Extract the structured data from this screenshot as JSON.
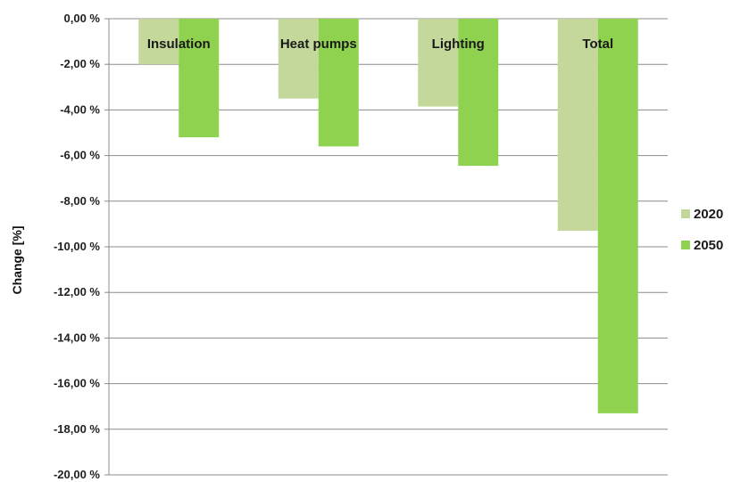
{
  "chart_data": {
    "type": "bar",
    "title": "",
    "xlabel": "",
    "ylabel": "Change [%]",
    "ylim": [
      -20,
      0
    ],
    "y_tick_values": [
      0,
      -2,
      -4,
      -6,
      -8,
      -10,
      -12,
      -14,
      -16,
      -18,
      -20
    ],
    "y_tick_labels": [
      "0,00 %",
      "-2,00 %",
      "-4,00 %",
      "-6,00 %",
      "-8,00 %",
      "-10,00 %",
      "-12,00 %",
      "-14,00 %",
      "-16,00 %",
      "-18,00 %",
      "-20,00 %"
    ],
    "categories": [
      "Insulation",
      "Heat pumps",
      "Lighting",
      "Total"
    ],
    "series": [
      {
        "name": "2020",
        "values": [
          -2.0,
          -3.5,
          -3.85,
          -9.3
        ],
        "color": "#c4d89b"
      },
      {
        "name": "2050",
        "values": [
          -5.2,
          -5.6,
          -6.45,
          -17.3
        ],
        "color": "#8fd24f"
      }
    ],
    "grid": true,
    "legend_position": "right"
  }
}
